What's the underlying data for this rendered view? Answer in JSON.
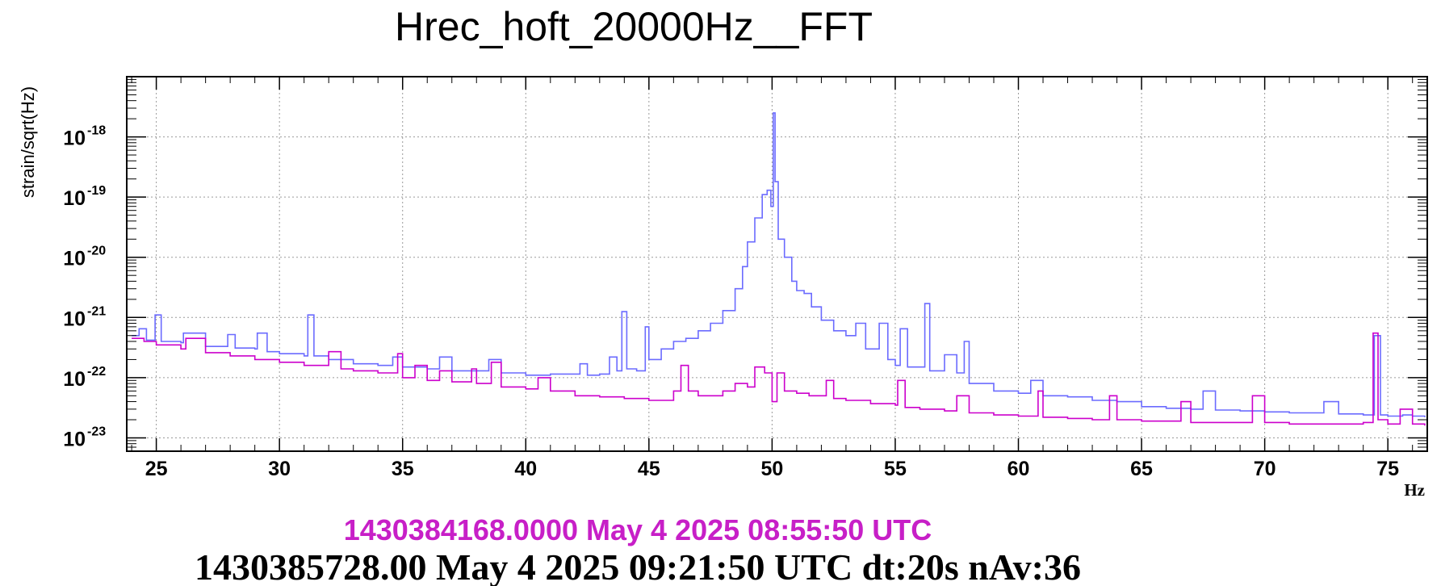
{
  "chart_data": {
    "type": "line",
    "title": "Hrec_hoft_20000Hz__FFT",
    "ylabel": "strain/sqrt(Hz)",
    "xlabel": "Hz",
    "xlim": [
      23.8,
      76.6
    ],
    "ylim": [
      6e-24,
      1e-17
    ],
    "yscale": "log",
    "grid": true,
    "x_ticks": [
      25,
      30,
      35,
      40,
      45,
      50,
      55,
      60,
      65,
      70,
      75
    ],
    "y_ticks": [
      {
        "value": 1e-23,
        "base": "10",
        "exp": "-23"
      },
      {
        "value": 1e-22,
        "base": "10",
        "exp": "-22"
      },
      {
        "value": 1e-21,
        "base": "10",
        "exp": "-21"
      },
      {
        "value": 1e-20,
        "base": "10",
        "exp": "-20"
      },
      {
        "value": 1e-19,
        "base": "10",
        "exp": "-19"
      },
      {
        "value": 1e-18,
        "base": "10",
        "exp": "-18"
      }
    ],
    "series": [
      {
        "color": "#6b6bff",
        "points": [
          [
            24.0,
            5e-22
          ],
          [
            24.3,
            6.5e-22
          ],
          [
            24.6,
            4.2e-22
          ],
          [
            24.95,
            1.1e-21
          ],
          [
            25.2,
            4e-22
          ],
          [
            26.0,
            3.8e-22
          ],
          [
            26.1,
            5.5e-22
          ],
          [
            27.0,
            3.3e-22
          ],
          [
            27.9,
            5.2e-22
          ],
          [
            28.2,
            3.1e-22
          ],
          [
            29.0,
            3e-22
          ],
          [
            29.1,
            5.5e-22
          ],
          [
            29.5,
            2.7e-22
          ],
          [
            30.0,
            2.5e-22
          ],
          [
            31.0,
            2.3e-22
          ],
          [
            31.15,
            1.1e-21
          ],
          [
            31.4,
            2.3e-22
          ],
          [
            32.0,
            2e-22
          ],
          [
            33.0,
            1.7e-22
          ],
          [
            34.0,
            1.6e-22
          ],
          [
            34.6,
            2.2e-22
          ],
          [
            35.0,
            1.5e-22
          ],
          [
            36.0,
            1.4e-22
          ],
          [
            36.5,
            2.2e-22
          ],
          [
            37.0,
            1.3e-22
          ],
          [
            38.0,
            1.3e-22
          ],
          [
            38.5,
            2e-22
          ],
          [
            39.0,
            1.2e-22
          ],
          [
            40.0,
            1.1e-22
          ],
          [
            41.0,
            1.15e-22
          ],
          [
            42.2,
            1.7e-22
          ],
          [
            42.5,
            1.1e-22
          ],
          [
            43.0,
            1.15e-22
          ],
          [
            43.4,
            2.2e-22
          ],
          [
            43.7,
            1.3e-22
          ],
          [
            43.9,
            1.25e-21
          ],
          [
            44.1,
            1.4e-22
          ],
          [
            44.5,
            1.3e-22
          ],
          [
            44.85,
            7e-22
          ],
          [
            45.0,
            2e-22
          ],
          [
            45.5,
            3e-22
          ],
          [
            46.0,
            4e-22
          ],
          [
            46.5,
            4.5e-22
          ],
          [
            47.0,
            6e-22
          ],
          [
            47.5,
            8e-22
          ],
          [
            48.0,
            1.3e-21
          ],
          [
            48.5,
            3e-21
          ],
          [
            48.8,
            7e-21
          ],
          [
            49.0,
            1.8e-20
          ],
          [
            49.3,
            4.5e-20
          ],
          [
            49.6,
            1.1e-19
          ],
          [
            49.8,
            1.3e-19
          ],
          [
            49.95,
            7e-20
          ],
          [
            50.05,
            2.5e-18
          ],
          [
            50.12,
            1.8e-19
          ],
          [
            50.25,
            2e-20
          ],
          [
            50.5,
            1e-20
          ],
          [
            50.8,
            4e-21
          ],
          [
            51.0,
            2.8e-21
          ],
          [
            51.3,
            2.5e-21
          ],
          [
            51.6,
            1.5e-21
          ],
          [
            52.0,
            9e-22
          ],
          [
            52.5,
            6e-22
          ],
          [
            53.0,
            5e-22
          ],
          [
            53.4,
            8e-22
          ],
          [
            53.8,
            3e-22
          ],
          [
            54.35,
            8e-22
          ],
          [
            54.7,
            2e-22
          ],
          [
            55.0,
            1.6e-22
          ],
          [
            55.2,
            6.5e-22
          ],
          [
            55.5,
            1.5e-22
          ],
          [
            56.2,
            1.7e-21
          ],
          [
            56.4,
            1.3e-22
          ],
          [
            57.0,
            2.4e-22
          ],
          [
            57.5,
            1.2e-22
          ],
          [
            57.8,
            4e-22
          ],
          [
            58.0,
            8e-23
          ],
          [
            59.0,
            6e-23
          ],
          [
            60.0,
            5.5e-23
          ],
          [
            60.5,
            9e-23
          ],
          [
            61.0,
            5e-23
          ],
          [
            62.0,
            4.8e-23
          ],
          [
            63.0,
            4.2e-23
          ],
          [
            64.0,
            4e-23
          ],
          [
            65.0,
            3.3e-23
          ],
          [
            66.0,
            3.1e-23
          ],
          [
            67.0,
            3e-23
          ],
          [
            67.5,
            6e-23
          ],
          [
            68.0,
            2.9e-23
          ],
          [
            69.0,
            2.8e-23
          ],
          [
            70.0,
            2.7e-23
          ],
          [
            71.0,
            2.6e-23
          ],
          [
            72.0,
            2.6e-23
          ],
          [
            72.4,
            4e-23
          ],
          [
            73.0,
            2.5e-23
          ],
          [
            74.0,
            2.4e-23
          ],
          [
            74.45,
            5e-22
          ],
          [
            74.7,
            2.4e-23
          ],
          [
            75.0,
            2.3e-23
          ],
          [
            75.6,
            2.4e-23
          ],
          [
            76.0,
            2.3e-23
          ],
          [
            76.5,
            2.2e-23
          ]
        ]
      },
      {
        "color": "#cc00cc",
        "points": [
          [
            24.0,
            4.5e-22
          ],
          [
            24.5,
            4e-22
          ],
          [
            25.0,
            3.5e-22
          ],
          [
            26.0,
            3e-22
          ],
          [
            26.2,
            4.5e-22
          ],
          [
            27.0,
            2.6e-22
          ],
          [
            28.0,
            2.3e-22
          ],
          [
            29.0,
            2e-22
          ],
          [
            30.0,
            1.8e-22
          ],
          [
            31.0,
            1.6e-22
          ],
          [
            32.0,
            2.7e-22
          ],
          [
            32.5,
            1.4e-22
          ],
          [
            33.0,
            1.3e-22
          ],
          [
            34.0,
            1.2e-22
          ],
          [
            34.8,
            2.5e-22
          ],
          [
            35.0,
            1e-22
          ],
          [
            35.5,
            1.6e-22
          ],
          [
            36.0,
            9e-23
          ],
          [
            36.5,
            1.3e-22
          ],
          [
            37.0,
            8.5e-23
          ],
          [
            37.8,
            1.4e-22
          ],
          [
            38.0,
            8e-23
          ],
          [
            38.6,
            1.8e-22
          ],
          [
            39.0,
            7e-23
          ],
          [
            40.0,
            6.5e-23
          ],
          [
            40.5,
            1e-22
          ],
          [
            41.0,
            6e-23
          ],
          [
            42.0,
            5e-23
          ],
          [
            43.0,
            4.8e-23
          ],
          [
            44.0,
            4.5e-23
          ],
          [
            45.0,
            4.2e-23
          ],
          [
            46.0,
            6e-23
          ],
          [
            46.3,
            1.6e-22
          ],
          [
            46.6,
            6e-23
          ],
          [
            47.0,
            5e-23
          ],
          [
            48.0,
            6e-23
          ],
          [
            48.5,
            8e-23
          ],
          [
            49.0,
            7e-23
          ],
          [
            49.3,
            1.5e-22
          ],
          [
            49.7,
            1.2e-22
          ],
          [
            50.0,
            4e-23
          ],
          [
            50.2,
            1.2e-22
          ],
          [
            50.5,
            6e-23
          ],
          [
            51.0,
            5.5e-23
          ],
          [
            51.5,
            5e-23
          ],
          [
            52.2,
            9e-23
          ],
          [
            52.5,
            4.5e-23
          ],
          [
            53.0,
            4.2e-23
          ],
          [
            54.0,
            3.7e-23
          ],
          [
            55.0,
            3.5e-23
          ],
          [
            55.1,
            9e-23
          ],
          [
            55.4,
            3.2e-23
          ],
          [
            56.0,
            3e-23
          ],
          [
            57.0,
            2.8e-23
          ],
          [
            57.5,
            5e-23
          ],
          [
            58.0,
            2.6e-23
          ],
          [
            59.0,
            2.4e-23
          ],
          [
            60.0,
            2.3e-23
          ],
          [
            60.8,
            6e-23
          ],
          [
            61.0,
            2.2e-23
          ],
          [
            62.0,
            2.1e-23
          ],
          [
            63.0,
            2e-23
          ],
          [
            63.7,
            5e-23
          ],
          [
            64.0,
            2e-23
          ],
          [
            65.0,
            1.9e-23
          ],
          [
            66.0,
            1.9e-23
          ],
          [
            66.6,
            4e-23
          ],
          [
            67.0,
            1.8e-23
          ],
          [
            68.0,
            1.8e-23
          ],
          [
            69.5,
            5e-23
          ],
          [
            70.0,
            1.8e-23
          ],
          [
            71.0,
            1.7e-23
          ],
          [
            72.0,
            1.7e-23
          ],
          [
            73.0,
            1.7e-23
          ],
          [
            74.0,
            1.8e-23
          ],
          [
            74.4,
            5.5e-22
          ],
          [
            74.6,
            2e-23
          ],
          [
            75.0,
            1.7e-23
          ],
          [
            75.5,
            3e-23
          ],
          [
            76.0,
            1.7e-23
          ],
          [
            76.5,
            1.6e-23
          ]
        ]
      }
    ]
  },
  "footer": {
    "line1": "1430384168.0000 May 4 2025 08:55:50 UTC",
    "line2": "1430385728.00 May 4 2025 09:21:50 UTC dt:20s nAv:36"
  }
}
